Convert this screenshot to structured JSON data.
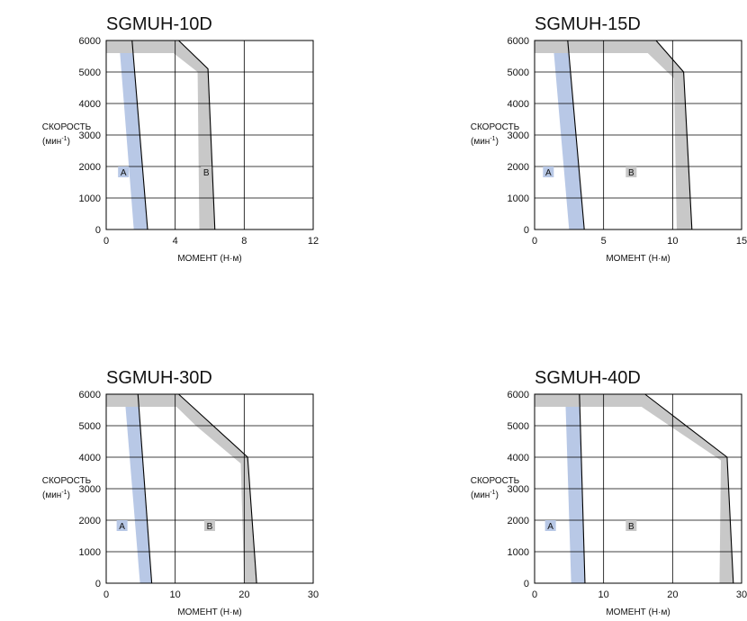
{
  "chart_data": [
    {
      "type": "area",
      "title": "SGMUH-10D",
      "xlabel": "МОМЕНТ (Н·м)",
      "ylabel": "СКОРОСТЬ",
      "ylabel_unit_base": "(мин",
      "ylabel_unit_sup": "-1",
      "ylabel_unit_end": ")",
      "xlim": [
        0,
        12
      ],
      "ylim": [
        0,
        6000
      ],
      "xticks": [
        0,
        4,
        8,
        12
      ],
      "yticks": [
        0,
        1000,
        2000,
        3000,
        4000,
        5000,
        6000
      ],
      "grid": true,
      "region_labels": [
        "A",
        "B"
      ],
      "series": [
        {
          "name": "A",
          "x": [
            0,
            1.5,
            2.4,
            1.6,
            0.8,
            0.8,
            0
          ],
          "y": [
            6000,
            6000,
            0,
            0,
            5600,
            5600,
            5600
          ],
          "boundary_x": [
            1.5,
            2.4
          ],
          "boundary_y": [
            6000,
            0
          ]
        },
        {
          "name": "B",
          "x": [
            0,
            4.2,
            5.9,
            6.3,
            5.4,
            5.3,
            3.9,
            0
          ],
          "y": [
            6000,
            6000,
            5100,
            0,
            0,
            5000,
            5600,
            5600
          ],
          "boundary_x": [
            4.2,
            5.9,
            6.3
          ],
          "boundary_y": [
            6000,
            5100,
            0
          ]
        }
      ]
    },
    {
      "type": "area",
      "title": "SGMUH-15D",
      "xlabel": "МОМЕНТ (Н·м)",
      "ylabel": "СКОРОСТЬ",
      "ylabel_unit_base": "(мин",
      "ylabel_unit_sup": "-1",
      "ylabel_unit_end": ")",
      "xlim": [
        0,
        15
      ],
      "ylim": [
        0,
        6000
      ],
      "xticks": [
        0,
        5,
        10,
        15
      ],
      "yticks": [
        0,
        1000,
        2000,
        3000,
        4000,
        5000,
        6000
      ],
      "grid": true,
      "region_labels": [
        "A",
        "B"
      ],
      "series": [
        {
          "name": "A",
          "x": [
            0,
            2.4,
            3.6,
            2.5,
            1.4,
            1.4,
            0
          ],
          "y": [
            6000,
            6000,
            0,
            0,
            5600,
            5600,
            5600
          ],
          "boundary_x": [
            2.4,
            3.6
          ],
          "boundary_y": [
            6000,
            0
          ]
        },
        {
          "name": "B",
          "x": [
            0,
            8.8,
            10.8,
            11.4,
            10.3,
            10.1,
            8.2,
            0
          ],
          "y": [
            6000,
            6000,
            5000,
            0,
            0,
            4800,
            5600,
            5600
          ],
          "boundary_x": [
            8.8,
            10.8,
            11.4
          ],
          "boundary_y": [
            6000,
            5000,
            0
          ]
        }
      ]
    },
    {
      "type": "area",
      "title": "SGMUH-30D",
      "xlabel": "МОМЕНТ (Н·м)",
      "ylabel": "СКОРОСТЬ",
      "ylabel_unit_base": "(мин",
      "ylabel_unit_sup": "-1",
      "ylabel_unit_end": ")",
      "xlim": [
        0,
        30
      ],
      "ylim": [
        0,
        6000
      ],
      "xticks": [
        0,
        10,
        20,
        30
      ],
      "yticks": [
        0,
        1000,
        2000,
        3000,
        4000,
        5000,
        6000
      ],
      "grid": true,
      "region_labels": [
        "A",
        "B"
      ],
      "series": [
        {
          "name": "A",
          "x": [
            0,
            4.6,
            6.6,
            4.9,
            2.8,
            2.8,
            0
          ],
          "y": [
            6000,
            6000,
            0,
            0,
            5600,
            5600,
            5600
          ],
          "boundary_x": [
            4.6,
            6.6
          ],
          "boundary_y": [
            6000,
            0
          ]
        },
        {
          "name": "B",
          "x": [
            0,
            10.5,
            14.0,
            20.5,
            21.8,
            20.0,
            19.5,
            13.0,
            10.2,
            0
          ],
          "y": [
            6000,
            6000,
            5300,
            4000,
            0,
            0,
            3800,
            5000,
            5600,
            5600
          ],
          "boundary_x": [
            10.5,
            14.0,
            20.5,
            21.8
          ],
          "boundary_y": [
            6000,
            5300,
            4000,
            0
          ]
        }
      ]
    },
    {
      "type": "area",
      "title": "SGMUH-40D",
      "xlabel": "МОМЕНТ (Н·м)",
      "ylabel": "СКОРОСТЬ",
      "ylabel_unit_base": "(мин",
      "ylabel_unit_sup": "-1",
      "ylabel_unit_end": ")",
      "xlim": [
        0,
        30
      ],
      "ylim": [
        0,
        6000
      ],
      "xticks": [
        0,
        10,
        20,
        30
      ],
      "yticks": [
        0,
        1000,
        2000,
        3000,
        4000,
        5000,
        6000
      ],
      "grid": true,
      "region_labels": [
        "A",
        "B"
      ],
      "series": [
        {
          "name": "A",
          "x": [
            0,
            6.5,
            7.3,
            5.3,
            4.5,
            4.5,
            0
          ],
          "y": [
            6000,
            6000,
            0,
            0,
            5600,
            5600,
            5600
          ],
          "boundary_x": [
            6.5,
            7.3
          ],
          "boundary_y": [
            6000,
            0
          ]
        },
        {
          "name": "B",
          "x": [
            0,
            16.0,
            27.9,
            28.8,
            26.8,
            27.0,
            15.5,
            0
          ],
          "y": [
            6000,
            6000,
            4000,
            0,
            0,
            3900,
            5600,
            5600
          ],
          "boundary_x": [
            16.0,
            27.9,
            28.8
          ],
          "boundary_y": [
            6000,
            4000,
            0
          ]
        }
      ]
    }
  ],
  "colors": {
    "region_a": "#b8c8e6",
    "region_b": "#c8c8c8",
    "boundary": "#000000",
    "grid": "#000000"
  }
}
